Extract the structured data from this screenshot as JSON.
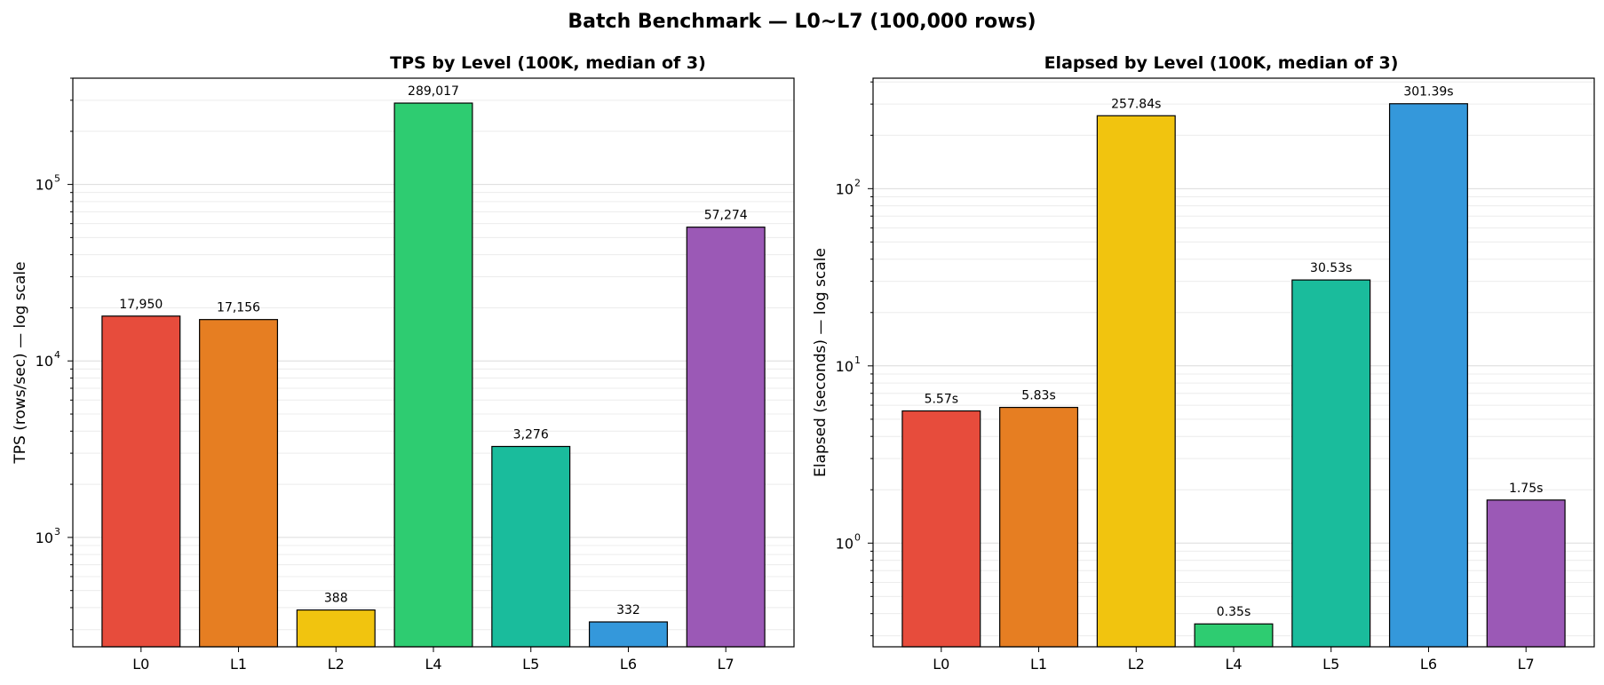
{
  "suptitle": "Batch Benchmark — L0~L7 (100,000 rows)",
  "chart_data": [
    {
      "type": "bar",
      "title": "TPS by Level (100K, median of 3)",
      "xlabel": "",
      "ylabel": "TPS (rows/sec) — log scale",
      "yscale": "log",
      "ylim": [
        240,
        400000
      ],
      "grid": true,
      "categories": [
        "L0",
        "L1",
        "L2",
        "L4",
        "L5",
        "L6",
        "L7"
      ],
      "values": [
        17950,
        17156,
        388,
        289017,
        3276,
        332,
        57274
      ],
      "data_labels": [
        "17,950",
        "17,156",
        "388",
        "289,017",
        "3,276",
        "332",
        "57,274"
      ],
      "major_ticks": [
        {
          "value": 1000,
          "base": "10",
          "exp": "3"
        },
        {
          "value": 10000,
          "base": "10",
          "exp": "4"
        },
        {
          "value": 100000,
          "base": "10",
          "exp": "5"
        }
      ],
      "colors": [
        "#e74c3c",
        "#e67e22",
        "#f1c40f",
        "#2ecc71",
        "#1abc9c",
        "#3498db",
        "#9b59b6"
      ]
    },
    {
      "type": "bar",
      "title": "Elapsed by Level (100K, median of 3)",
      "xlabel": "",
      "ylabel": "Elapsed (seconds) — log scale",
      "yscale": "log",
      "ylim": [
        0.26,
        420
      ],
      "grid": true,
      "categories": [
        "L0",
        "L1",
        "L2",
        "L4",
        "L5",
        "L6",
        "L7"
      ],
      "values": [
        5.57,
        5.83,
        257.84,
        0.35,
        30.53,
        301.39,
        1.75
      ],
      "data_labels": [
        "5.57s",
        "5.83s",
        "257.84s",
        "0.35s",
        "30.53s",
        "301.39s",
        "1.75s"
      ],
      "major_ticks": [
        {
          "value": 1,
          "base": "10",
          "exp": "0"
        },
        {
          "value": 10,
          "base": "10",
          "exp": "1"
        },
        {
          "value": 100,
          "base": "10",
          "exp": "2"
        }
      ],
      "colors": [
        "#e74c3c",
        "#e67e22",
        "#f1c40f",
        "#2ecc71",
        "#1abc9c",
        "#3498db",
        "#9b59b6"
      ]
    }
  ]
}
